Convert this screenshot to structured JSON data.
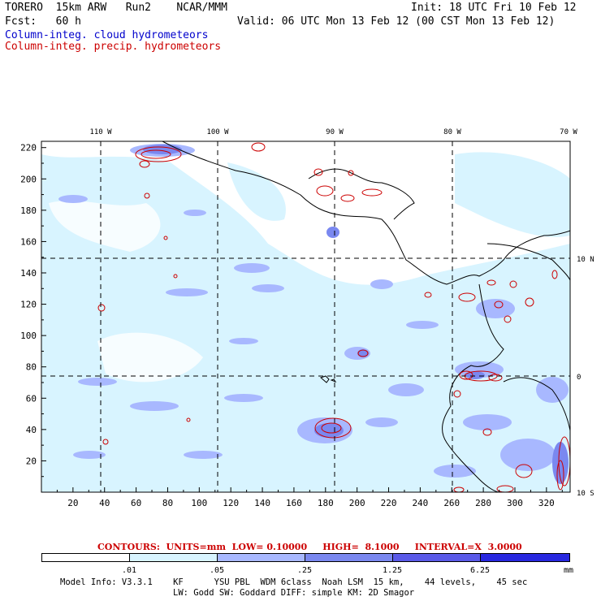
{
  "header": {
    "model": "TORERO  15km ARW   Run2    NCAR/MMM",
    "init": "Init: 18 UTC Fri 10 Feb 12",
    "fcst": "Fcst:   60 h",
    "valid": "Valid: 06 UTC Mon 13 Feb 12 (00 CST Mon 13 Feb 12)",
    "field_cloud": "Column-integ. cloud hydrometeors",
    "field_precip": "Column-integ. precip. hydrometeors",
    "cloud_color": "#0000cc",
    "precip_color": "#cc0000"
  },
  "map": {
    "lon_labels": [
      "110 W",
      "100 W",
      "90 W",
      "80 W",
      "70 W"
    ],
    "lat_labels": [
      "10 N",
      "0",
      "10 S"
    ],
    "y_ticks": [
      "220",
      "200",
      "180",
      "160",
      "140",
      "120",
      "100",
      "80",
      "60",
      "40",
      "20"
    ],
    "x_ticks": [
      "20",
      "40",
      "60",
      "80",
      "100",
      "120",
      "140",
      "160",
      "180",
      "200",
      "220",
      "240",
      "260",
      "280",
      "300",
      "320"
    ],
    "colors": {
      "land_line": "#000000",
      "shade1": "#d8f4ff",
      "shade2": "#a8b8ff",
      "shade3": "#7a88f0",
      "precip_contour": "#cc0000"
    }
  },
  "contour_info": "CONTOURS:  UNITS=mm  LOW= 0.10000     HIGH=  8.1000     INTERVAL=X  3.0000",
  "legend": {
    "labels": [
      ".01",
      ".05",
      ".25",
      "1.25",
      "6.25"
    ],
    "unit": "mm",
    "colors": [
      "#ffffff",
      "#d8f4ff",
      "#a8b8ff",
      "#7a88f0",
      "#5a5ae8",
      "#2828e0"
    ]
  },
  "footer": {
    "line1": "Model Info: V3.3.1    KF      YSU PBL  WDM 6class  Noah LSM  15 km,    44 levels,    45 sec",
    "line2": "LW: Godd SW: Goddard DIFF: simple KM: 2D Smagor"
  }
}
